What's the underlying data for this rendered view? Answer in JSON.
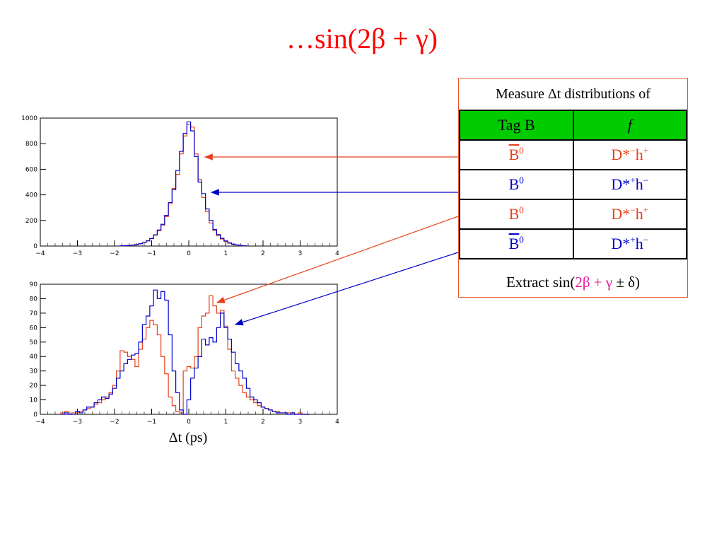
{
  "title": "…sin(2β + γ)",
  "xunit_label": "Δt (ps)",
  "table": {
    "caption": "Measure Δt distributions of",
    "headers": [
      "Tag B",
      "f"
    ],
    "rows": [
      {
        "tag": "B⁰ (bar)",
        "tag_text": "B",
        "tag_sup": "0",
        "tag_bar": true,
        "f_base": "D*",
        "f_sup1": "−",
        "f_mid": "h",
        "f_sup2": "+",
        "color": "#e8401a"
      },
      {
        "tag_text": "B",
        "tag_sup": "0",
        "tag_bar": false,
        "f_base": "D*",
        "f_sup1": "+",
        "f_mid": "h",
        "f_sup2": "−",
        "color": "#0000cc"
      },
      {
        "tag_text": "B",
        "tag_sup": "0",
        "tag_bar": false,
        "f_base": "D*",
        "f_sup1": "−",
        "f_mid": "h",
        "f_sup2": "+",
        "color": "#e8401a"
      },
      {
        "tag_text": "B",
        "tag_sup": "0",
        "tag_bar": true,
        "f_base": "D*",
        "f_sup1": "+",
        "f_mid": "h",
        "f_sup2": "−",
        "color": "#0000cc"
      }
    ],
    "footer_prefix": "Extract sin(",
    "footer_highlight": "2β + γ",
    "footer_suffix": " ± δ)"
  },
  "chart_data": [
    {
      "type": "line",
      "xlim": [
        -4,
        4
      ],
      "ylim": [
        0,
        1000
      ],
      "x_ticks": [
        -4,
        -3,
        -2,
        -1,
        0,
        1,
        2,
        3,
        4
      ],
      "y_ticks": [
        0,
        200,
        400,
        600,
        800,
        1000
      ],
      "x": [
        -1.8,
        -1.7,
        -1.6,
        -1.5,
        -1.4,
        -1.3,
        -1.2,
        -1.1,
        -1.0,
        -0.9,
        -0.8,
        -0.7,
        -0.6,
        -0.5,
        -0.4,
        -0.3,
        -0.2,
        -0.1,
        0.0,
        0.1,
        0.2,
        0.3,
        0.4,
        0.5,
        0.6,
        0.7,
        0.8,
        0.9,
        1.0,
        1.1,
        1.2,
        1.3,
        1.4,
        1.5
      ],
      "series": [
        {
          "color": "#e8401a",
          "values": [
            2,
            3,
            5,
            8,
            12,
            18,
            28,
            42,
            60,
            85,
            120,
            160,
            230,
            330,
            450,
            560,
            720,
            860,
            950,
            930,
            720,
            520,
            380,
            270,
            180,
            120,
            80,
            55,
            35,
            22,
            14,
            8,
            4,
            2
          ]
        },
        {
          "color": "#0000cc",
          "values": [
            2,
            3,
            5,
            8,
            12,
            18,
            26,
            40,
            58,
            88,
            125,
            170,
            240,
            340,
            440,
            590,
            740,
            880,
            970,
            900,
            700,
            500,
            410,
            290,
            200,
            130,
            90,
            60,
            40,
            25,
            15,
            9,
            5,
            2
          ]
        }
      ]
    },
    {
      "type": "line",
      "xlim": [
        -4,
        4
      ],
      "ylim": [
        0,
        90
      ],
      "x_ticks": [
        -4,
        -3,
        -2,
        -1,
        0,
        1,
        2,
        3,
        4
      ],
      "y_ticks": [
        0,
        10,
        20,
        30,
        40,
        50,
        60,
        70,
        80,
        90
      ],
      "x": [
        -3.4,
        -3.3,
        -3.2,
        -3.1,
        -3.0,
        -2.9,
        -2.8,
        -2.7,
        -2.6,
        -2.5,
        -2.4,
        -2.3,
        -2.2,
        -2.1,
        -2.0,
        -1.9,
        -1.8,
        -1.7,
        -1.6,
        -1.5,
        -1.4,
        -1.3,
        -1.2,
        -1.1,
        -1.0,
        -0.9,
        -0.8,
        -0.7,
        -0.6,
        -0.5,
        -0.4,
        -0.3,
        -0.2,
        -0.1,
        0.0,
        0.1,
        0.2,
        0.3,
        0.4,
        0.5,
        0.6,
        0.7,
        0.8,
        0.9,
        1.0,
        1.1,
        1.2,
        1.3,
        1.4,
        1.5,
        1.6,
        1.7,
        1.8,
        1.9,
        2.0,
        2.1,
        2.2,
        2.3,
        2.4,
        2.5,
        2.6,
        2.7,
        2.8,
        2.9,
        3.0,
        3.1,
        3.2
      ],
      "series": [
        {
          "color": "#e8401a",
          "values": [
            1,
            2,
            0,
            1,
            1,
            2,
            3,
            4,
            5,
            7,
            8,
            10,
            12,
            15,
            20,
            30,
            44,
            43,
            40,
            38,
            33,
            45,
            52,
            60,
            65,
            62,
            55,
            40,
            28,
            12,
            6,
            2,
            1,
            30,
            33,
            32,
            40,
            60,
            68,
            70,
            82,
            75,
            70,
            72,
            61,
            45,
            30,
            25,
            20,
            15,
            12,
            10,
            8,
            6,
            5,
            4,
            3,
            2,
            2,
            1,
            1,
            1,
            1,
            0,
            1,
            0,
            0
          ]
        },
        {
          "color": "#0000cc",
          "values": [
            0,
            1,
            0,
            0,
            2,
            1,
            3,
            5,
            5,
            8,
            10,
            12,
            11,
            14,
            18,
            25,
            30,
            35,
            38,
            41,
            42,
            50,
            62,
            68,
            75,
            86,
            80,
            85,
            79,
            55,
            30,
            15,
            3,
            0,
            10,
            25,
            32,
            40,
            52,
            48,
            53,
            50,
            60,
            70,
            60,
            52,
            43,
            35,
            30,
            25,
            18,
            12,
            10,
            8,
            5,
            4,
            3,
            2,
            1,
            1,
            1,
            0,
            1,
            0,
            0,
            0,
            0
          ]
        }
      ]
    }
  ]
}
